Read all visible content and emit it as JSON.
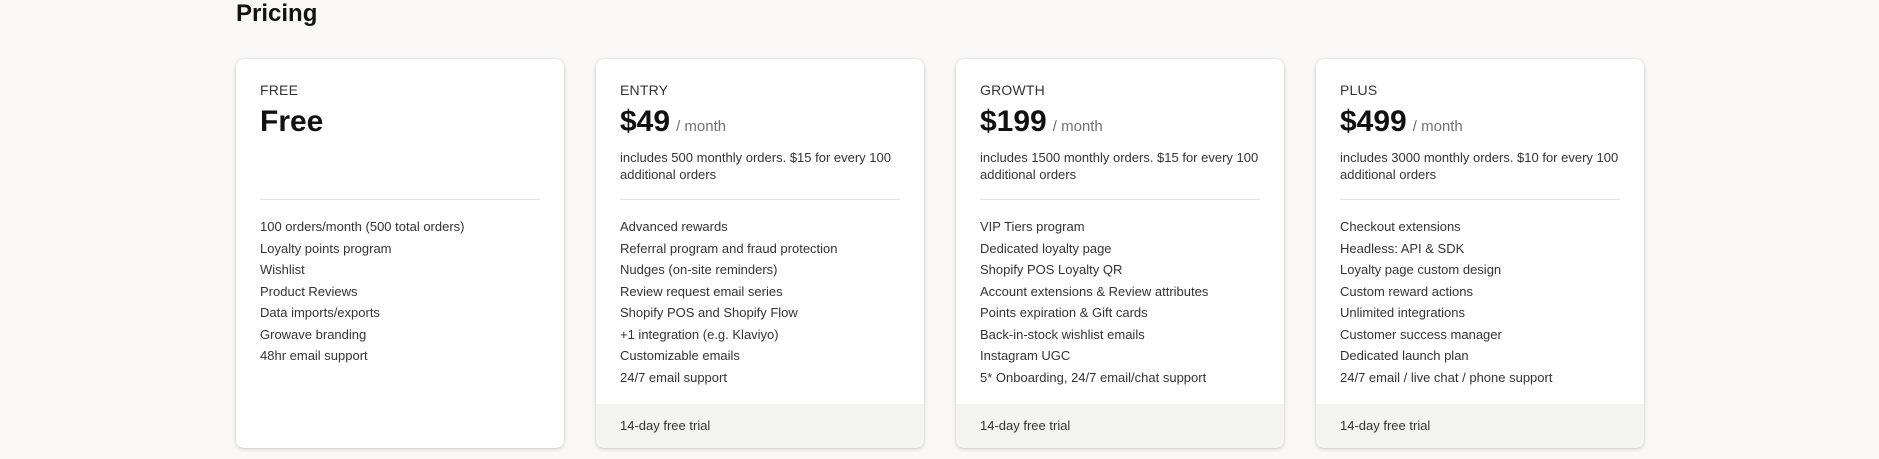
{
  "page": {
    "title": "Pricing"
  },
  "plans": [
    {
      "label": "FREE",
      "price": "Free",
      "per": "",
      "description": "",
      "features": [
        "100 orders/month (500 total orders)",
        "Loyalty points program",
        "Wishlist",
        "Product Reviews",
        "Data imports/exports",
        "Growave branding",
        "48hr email support"
      ],
      "footer": ""
    },
    {
      "label": "ENTRY",
      "price": "$49",
      "per": "/ month",
      "description": "includes 500 monthly orders. $15 for every 100 additional orders",
      "features": [
        "Advanced rewards",
        "Referral program and fraud protection",
        "Nudges (on-site reminders)",
        "Review request email series",
        "Shopify POS and Shopify Flow",
        "+1 integration (e.g. Klaviyo)",
        "Customizable emails",
        "24/7 email support"
      ],
      "footer": "14-day free trial"
    },
    {
      "label": "GROWTH",
      "price": "$199",
      "per": "/ month",
      "description": "includes 1500 monthly orders. $15 for every 100 additional orders",
      "features": [
        "VIP Tiers program",
        "Dedicated loyalty page",
        "Shopify POS Loyalty QR",
        "Account extensions & Review attributes",
        "Points expiration & Gift cards",
        "Back-in-stock wishlist emails",
        "Instagram UGC",
        "5* Onboarding, 24/7 email/chat support"
      ],
      "footer": "14-day free trial"
    },
    {
      "label": "PLUS",
      "price": "$499",
      "per": "/ month",
      "description": "includes 3000 monthly orders. $10 for every 100 additional orders",
      "features": [
        "Checkout extensions",
        "Headless: API & SDK",
        "Loyalty page custom design",
        "Custom reward actions",
        "Unlimited integrations",
        "Customer success manager",
        "Dedicated launch plan",
        "24/7 email / live chat / phone support"
      ],
      "footer": "14-day free trial"
    }
  ]
}
